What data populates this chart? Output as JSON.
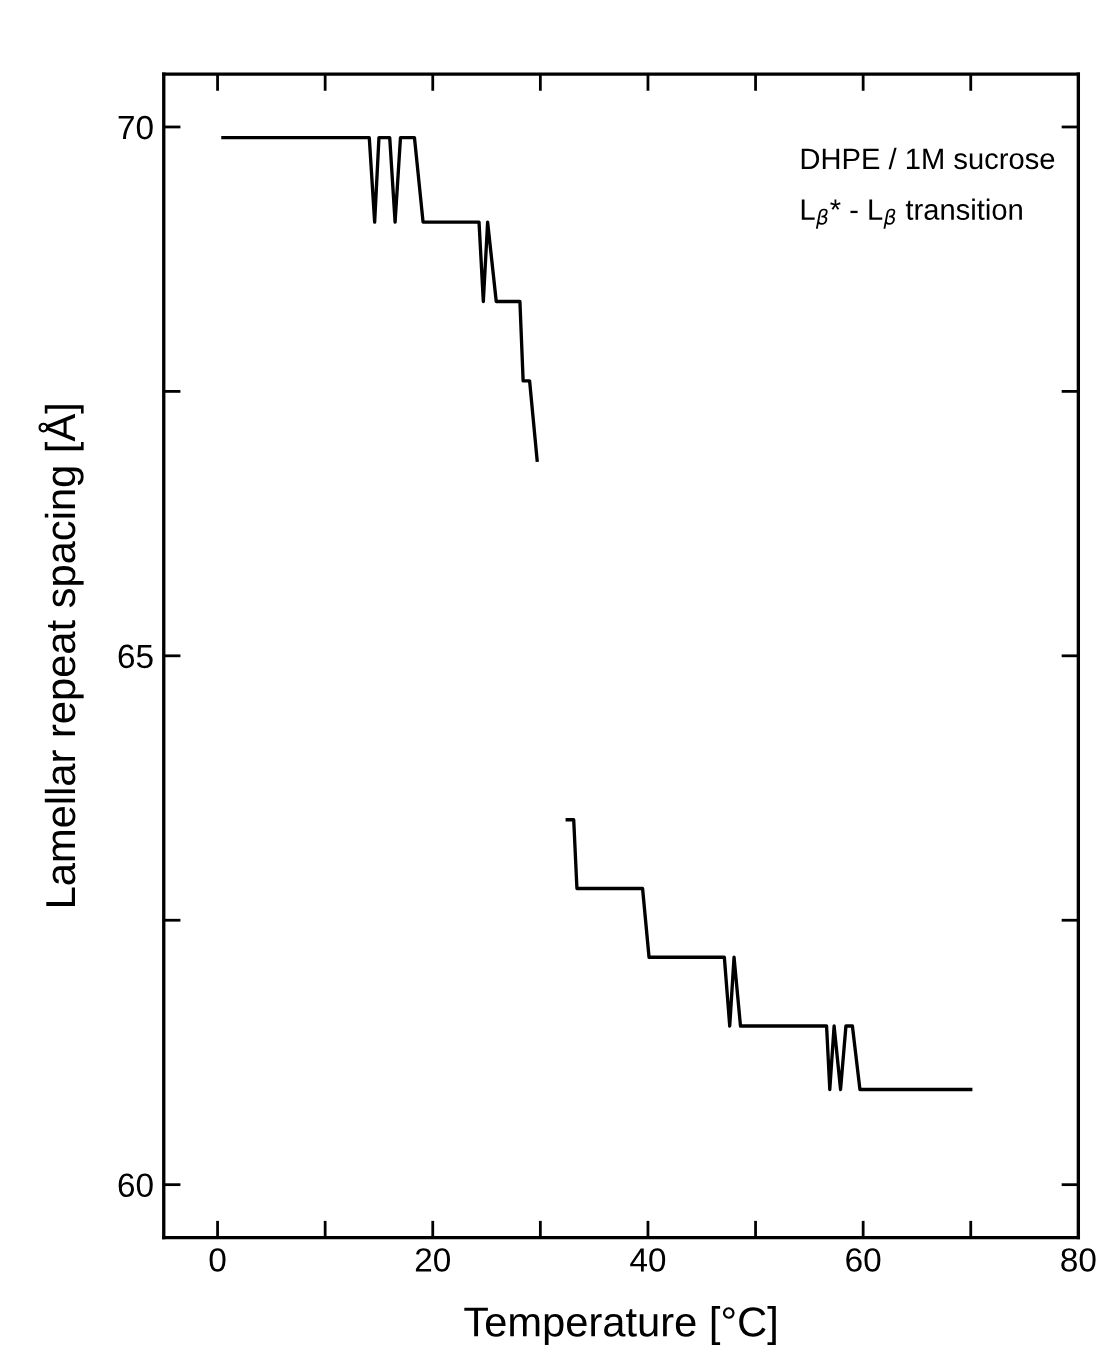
{
  "chart_data": {
    "type": "line",
    "xlabel": "Temperature [°C]",
    "ylabel": "Lamellar repeat spacing [Å]",
    "annotations": [
      "DHPE / 1M sucrose",
      "L$_{β}$* - L$_{β}$ transition"
    ],
    "series": [
      {
        "color": "#000000",
        "x": [
          0.5,
          14.1,
          14.6,
          15.0,
          16.0,
          16.5,
          17.0,
          18.3,
          19.1,
          24.3,
          24.7,
          25.1,
          25.9,
          28.1,
          28.4,
          29.0,
          29.7
        ],
        "values": [
          69.9,
          69.9,
          69.1,
          69.9,
          69.9,
          69.1,
          69.9,
          69.9,
          69.1,
          69.1,
          68.35,
          69.1,
          68.35,
          68.35,
          67.6,
          67.6,
          66.85
        ]
      },
      {
        "color": "#000000",
        "x": [
          32.5,
          33.1,
          33.4,
          39.5,
          40.1,
          47.1,
          47.6,
          48.0,
          48.6,
          56.6,
          56.9,
          57.3,
          57.9,
          58.4,
          59.0,
          59.7,
          70.0
        ],
        "values": [
          63.45,
          63.45,
          62.8,
          62.8,
          62.15,
          62.15,
          61.5,
          62.15,
          61.5,
          61.5,
          60.9,
          61.5,
          60.9,
          61.5,
          61.5,
          60.9,
          60.9
        ]
      }
    ],
    "xlim": [
      -5,
      80
    ],
    "ylim": [
      59.5,
      70.5
    ],
    "xticks": [
      0,
      {
        "value": 10,
        "label": null
      },
      20,
      {
        "value": 30,
        "label": null
      },
      40,
      {
        "value": 50,
        "label": null
      },
      60,
      {
        "value": 70,
        "label": null
      },
      80
    ],
    "yticks": [
      60,
      {
        "value": 62.5,
        "label": null
      },
      65,
      {
        "value": 67.5,
        "label": null
      },
      70
    ],
    "marker": "none",
    "line_style": "solid"
  }
}
